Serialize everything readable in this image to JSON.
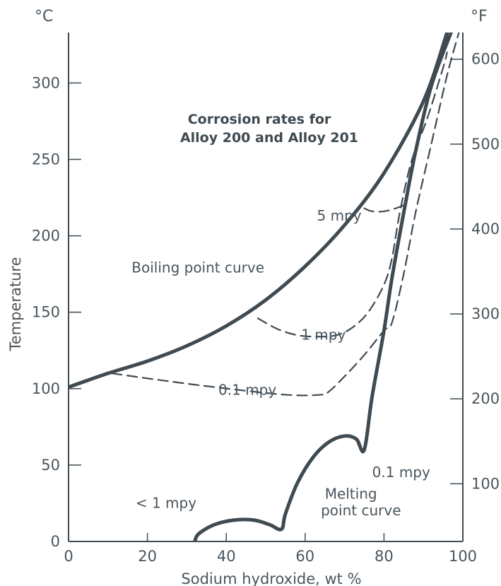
{
  "chart_data": {
    "type": "line",
    "title_lines": [
      "Corrosion rates for",
      "Alloy 200 and Alloy 201"
    ],
    "xlabel": "Sodium hydroxide, wt %",
    "ylabel": "Temperature",
    "left_unit": "°C",
    "right_unit": "°F",
    "xlim": [
      0,
      100
    ],
    "ylim_c": [
      0,
      333
    ],
    "x_ticks": [
      0,
      20,
      40,
      60,
      80,
      100
    ],
    "y_ticks_c": [
      0,
      50,
      100,
      150,
      200,
      250,
      300
    ],
    "y_ticks_f": [
      100,
      200,
      300,
      400,
      500,
      600
    ],
    "grid": false,
    "colors": {
      "axis": "#3f4a51",
      "curve": "#3f4a51",
      "dashed": "#3f4a51",
      "text": "#4a555c"
    },
    "series": [
      {
        "label": "Boiling point curve",
        "style": "solid",
        "points": [
          [
            0,
            101
          ],
          [
            10,
            110
          ],
          [
            20,
            118
          ],
          [
            30,
            128
          ],
          [
            40,
            141
          ],
          [
            50,
            158
          ],
          [
            60,
            180
          ],
          [
            70,
            207
          ],
          [
            80,
            241
          ],
          [
            90,
            288
          ],
          [
            96,
            333
          ]
        ]
      },
      {
        "label": "5 mpy",
        "style": "dashed",
        "points": [
          [
            75,
            218
          ],
          [
            77,
            216
          ],
          [
            80,
            216
          ],
          [
            83,
            218
          ],
          [
            86,
            221
          ]
        ]
      },
      {
        "label": "1 mpy",
        "style": "dashed",
        "points": [
          [
            48,
            146
          ],
          [
            53,
            139
          ],
          [
            58,
            135
          ],
          [
            63,
            134
          ],
          [
            68,
            135
          ],
          [
            72,
            140
          ],
          [
            76,
            150
          ],
          [
            80,
            168
          ],
          [
            82,
            185
          ],
          [
            84,
            215
          ],
          [
            87,
            249
          ],
          [
            91,
            277
          ],
          [
            95,
            310
          ],
          [
            96,
            320
          ]
        ]
      },
      {
        "label": "0.1 mpy",
        "style": "dashed",
        "points": [
          [
            11,
            110
          ],
          [
            22,
            106
          ],
          [
            37,
            101
          ],
          [
            55,
            96
          ],
          [
            64,
            96
          ],
          [
            66,
            98
          ],
          [
            70,
            108
          ],
          [
            75,
            122
          ],
          [
            80,
            138
          ],
          [
            82,
            143
          ],
          [
            85,
            175
          ],
          [
            88,
            215
          ],
          [
            92,
            260
          ],
          [
            96,
            305
          ],
          [
            99,
            333
          ]
        ]
      },
      {
        "label": "Melting point curve",
        "style": "solid",
        "points": [
          [
            32,
            0
          ],
          [
            33,
            5
          ],
          [
            37,
            11
          ],
          [
            42,
            14
          ],
          [
            47,
            14
          ],
          [
            51,
            11
          ],
          [
            54,
            8
          ],
          [
            55,
            18
          ],
          [
            58,
            38
          ],
          [
            62,
            55
          ],
          [
            66,
            65
          ],
          [
            70,
            69
          ],
          [
            73,
            67
          ],
          [
            75,
            60
          ],
          [
            77,
            95
          ],
          [
            80,
            138
          ],
          [
            82,
            172
          ],
          [
            85,
            215
          ],
          [
            88,
            255
          ],
          [
            92,
            298
          ],
          [
            97,
            333
          ]
        ]
      }
    ],
    "annotations": [
      {
        "text": "5 mpy",
        "x": 63,
        "y": 210
      },
      {
        "text": "Boiling point curve",
        "x": 16,
        "y": 176
      },
      {
        "text": "1 mpy",
        "x": 59,
        "y": 132
      },
      {
        "text": "0.1 mpy",
        "x": 38,
        "y": 96
      },
      {
        "text": "0.1 mpy",
        "x": 77,
        "y": 42
      },
      {
        "text": "< 1 mpy",
        "x": 17,
        "y": 22
      },
      {
        "text": "Melting",
        "x": 65,
        "y": 28
      },
      {
        "text": "point curve",
        "x": 64,
        "y": 17
      }
    ]
  }
}
